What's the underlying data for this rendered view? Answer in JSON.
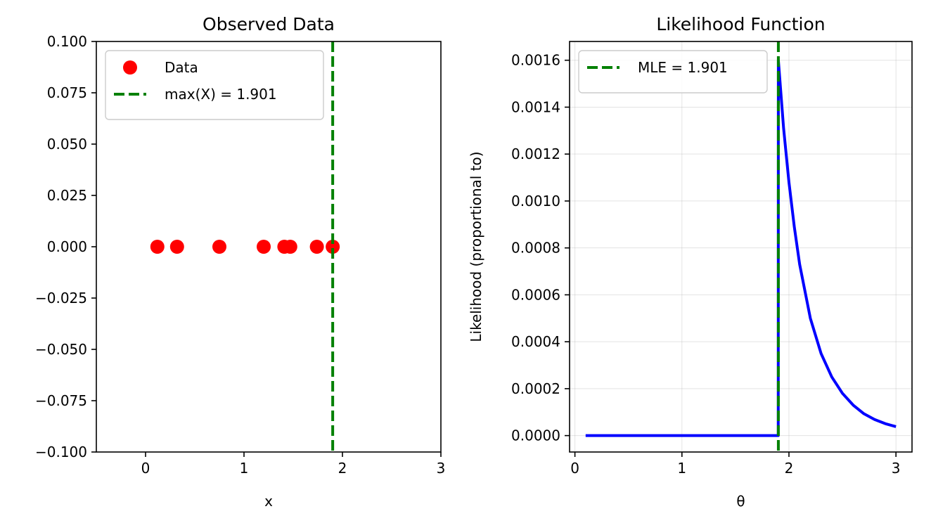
{
  "chart_data": [
    {
      "type": "scatter",
      "title": "Observed Data",
      "xlabel": "x",
      "ylabel": "",
      "xlim": [
        -0.5,
        3
      ],
      "ylim": [
        -0.1,
        0.1
      ],
      "xticks": [
        0,
        1,
        2,
        3
      ],
      "xtick_labels": [
        "0",
        "1",
        "2",
        "3"
      ],
      "yticks": [
        -0.1,
        -0.075,
        -0.05,
        -0.025,
        0,
        0.025,
        0.05,
        0.075,
        0.1
      ],
      "ytick_labels": [
        "−0.100",
        "−0.075",
        "−0.050",
        "−0.025",
        "0.000",
        "0.025",
        "0.050",
        "0.075",
        "0.100"
      ],
      "grid": false,
      "legend_position": "top-left",
      "series": [
        {
          "name": "Data",
          "kind": "scatter",
          "color": "#ff0000",
          "x": [
            0.12,
            0.32,
            0.75,
            1.2,
            1.41,
            1.47,
            1.74,
            1.901
          ],
          "y": [
            0,
            0,
            0,
            0,
            0,
            0,
            0,
            0
          ]
        },
        {
          "name": "max(X) = 1.901",
          "kind": "vline",
          "color": "#008000",
          "dash": true,
          "x": 1.901
        }
      ]
    },
    {
      "type": "line",
      "title": "Likelihood Function",
      "xlabel": "θ",
      "ylabel": "Likelihood (proportional to)",
      "xlim": [
        -0.05,
        3.15
      ],
      "ylim": [
        -7e-05,
        0.00168
      ],
      "xticks": [
        0,
        1,
        2,
        3
      ],
      "xtick_labels": [
        "0",
        "1",
        "2",
        "3"
      ],
      "yticks": [
        0,
        0.0002,
        0.0004,
        0.0006,
        0.0008,
        0.001,
        0.0012,
        0.0014,
        0.0016
      ],
      "ytick_labels": [
        "0.0000",
        "0.0002",
        "0.0004",
        "0.0006",
        "0.0008",
        "0.0010",
        "0.0012",
        "0.0014",
        "0.0016"
      ],
      "grid": true,
      "legend_position": "top-left",
      "series": [
        {
          "name": "",
          "kind": "line",
          "color": "#0000ff",
          "x": [
            0.1,
            1.9,
            1.9,
            1.901,
            1.95,
            2.0,
            2.05,
            2.1,
            2.2,
            2.3,
            2.4,
            2.5,
            2.6,
            2.7,
            2.8,
            2.9,
            3.0
          ],
          "y": [
            0,
            0,
            0,
            0.0016,
            0.00131,
            0.00108,
            0.00089,
            0.00073,
            0.0005,
            0.00035,
            0.00025,
            0.00018,
            0.00013,
            9.32e-05,
            6.86e-05,
            5.09e-05,
            3.81e-05
          ]
        },
        {
          "name": "MLE = 1.901",
          "kind": "vline",
          "color": "#008000",
          "dash": true,
          "x": 1.901
        }
      ]
    }
  ]
}
